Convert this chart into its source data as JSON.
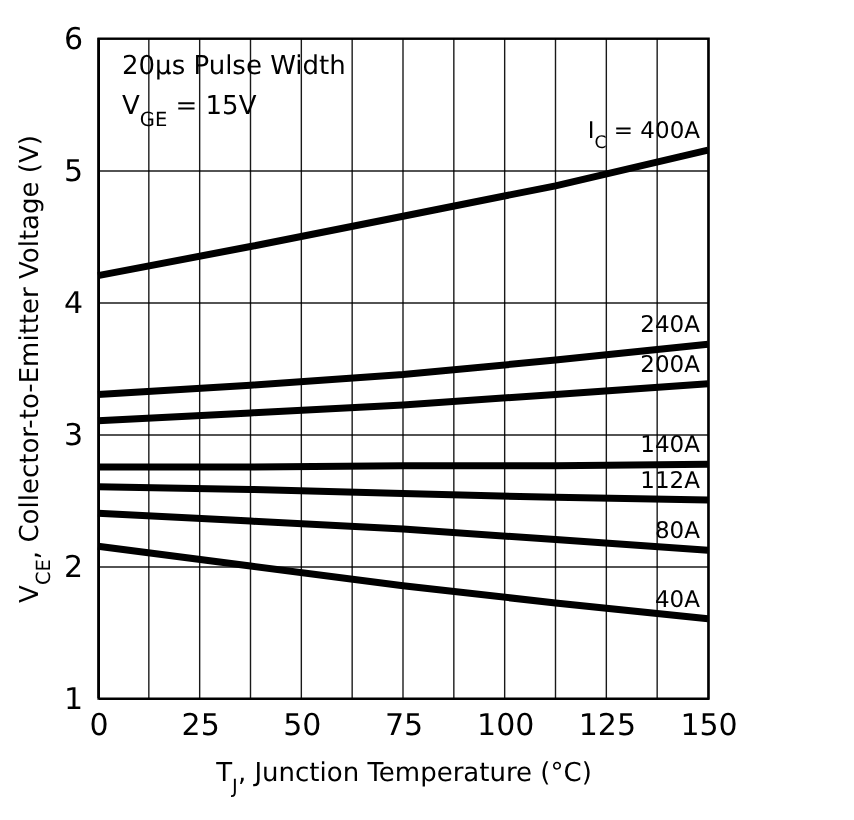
{
  "chart_data": {
    "type": "line",
    "xlabel": "T$_{J}$, Junction Temperature (°C)",
    "ylabel": "V$_{CE}$, Collector-to-Emitter Voltage (V)",
    "annotations": [
      "20µs Pulse Width",
      "V$_{GE}$ = 15V"
    ],
    "x": [
      0,
      37.5,
      75,
      112.5,
      150
    ],
    "xlim": [
      0,
      150
    ],
    "xticks": [
      0,
      {
        "value": 12.5,
        "label": null
      },
      25,
      {
        "value": 37.5,
        "label": null
      },
      50,
      {
        "value": 62.5,
        "label": null
      },
      75,
      {
        "value": 87.5,
        "label": null
      },
      100,
      {
        "value": 112.5,
        "label": null
      },
      125,
      {
        "value": 137.5,
        "label": null
      },
      150
    ],
    "ylim": [
      1,
      6
    ],
    "yticks": [
      1,
      2,
      3,
      4,
      5,
      6
    ],
    "grid": true,
    "legend": false,
    "line_style": "solid",
    "series": [
      {
        "name": "I$_{C}$ = 400A",
        "color": "#000000",
        "values": [
          4.2,
          4.42,
          4.65,
          4.88,
          5.15
        ]
      },
      {
        "name": "240A",
        "color": "#000000",
        "values": [
          3.3,
          3.37,
          3.45,
          3.56,
          3.68
        ]
      },
      {
        "name": "200A",
        "color": "#000000",
        "values": [
          3.1,
          3.16,
          3.22,
          3.3,
          3.38
        ]
      },
      {
        "name": "140A",
        "color": "#000000",
        "values": [
          2.75,
          2.75,
          2.76,
          2.76,
          2.77
        ]
      },
      {
        "name": "112A",
        "color": "#000000",
        "values": [
          2.6,
          2.58,
          2.55,
          2.52,
          2.5
        ]
      },
      {
        "name": "80A",
        "color": "#000000",
        "values": [
          2.4,
          2.34,
          2.28,
          2.2,
          2.12
        ]
      },
      {
        "name": "40A",
        "color": "#000000",
        "values": [
          2.15,
          2.0,
          1.85,
          1.72,
          1.6
        ]
      }
    ]
  }
}
